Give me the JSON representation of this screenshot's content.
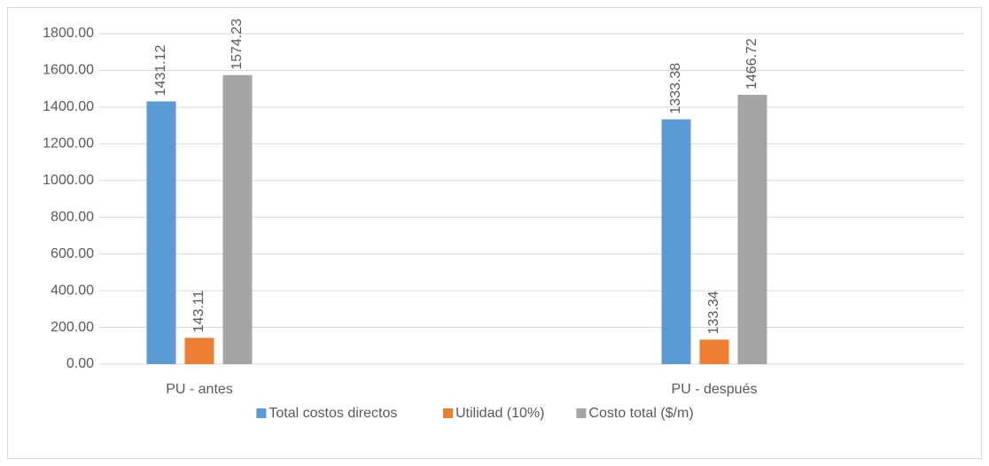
{
  "chart_data": {
    "type": "bar",
    "categories": [
      "PU - antes",
      "PU - después"
    ],
    "series": [
      {
        "name": "Total costos directos",
        "color": "#5b9bd5",
        "values": [
          1431.12,
          1333.38
        ]
      },
      {
        "name": "Utilidad (10%)",
        "color": "#ed7d31",
        "values": [
          143.11,
          133.34
        ]
      },
      {
        "name": "Costo total ($/m)",
        "color": "#a5a5a5",
        "values": [
          1574.23,
          1466.72
        ]
      }
    ],
    "ylim": [
      0,
      1800
    ],
    "yticks": [
      {
        "value": 0,
        "label": "0.00"
      },
      {
        "value": 200,
        "label": "200.00"
      },
      {
        "value": 400,
        "label": "400.00"
      },
      {
        "value": 600,
        "label": "600.00"
      },
      {
        "value": 800,
        "label": "800.00"
      },
      {
        "value": 1000,
        "label": "1000.00"
      },
      {
        "value": 1200,
        "label": "1200.00"
      },
      {
        "value": 1400,
        "label": "1400.00"
      },
      {
        "value": 1600,
        "label": "1600.00"
      },
      {
        "value": 1800,
        "label": "1800.00"
      }
    ],
    "grid": true,
    "legend": "bottom"
  }
}
